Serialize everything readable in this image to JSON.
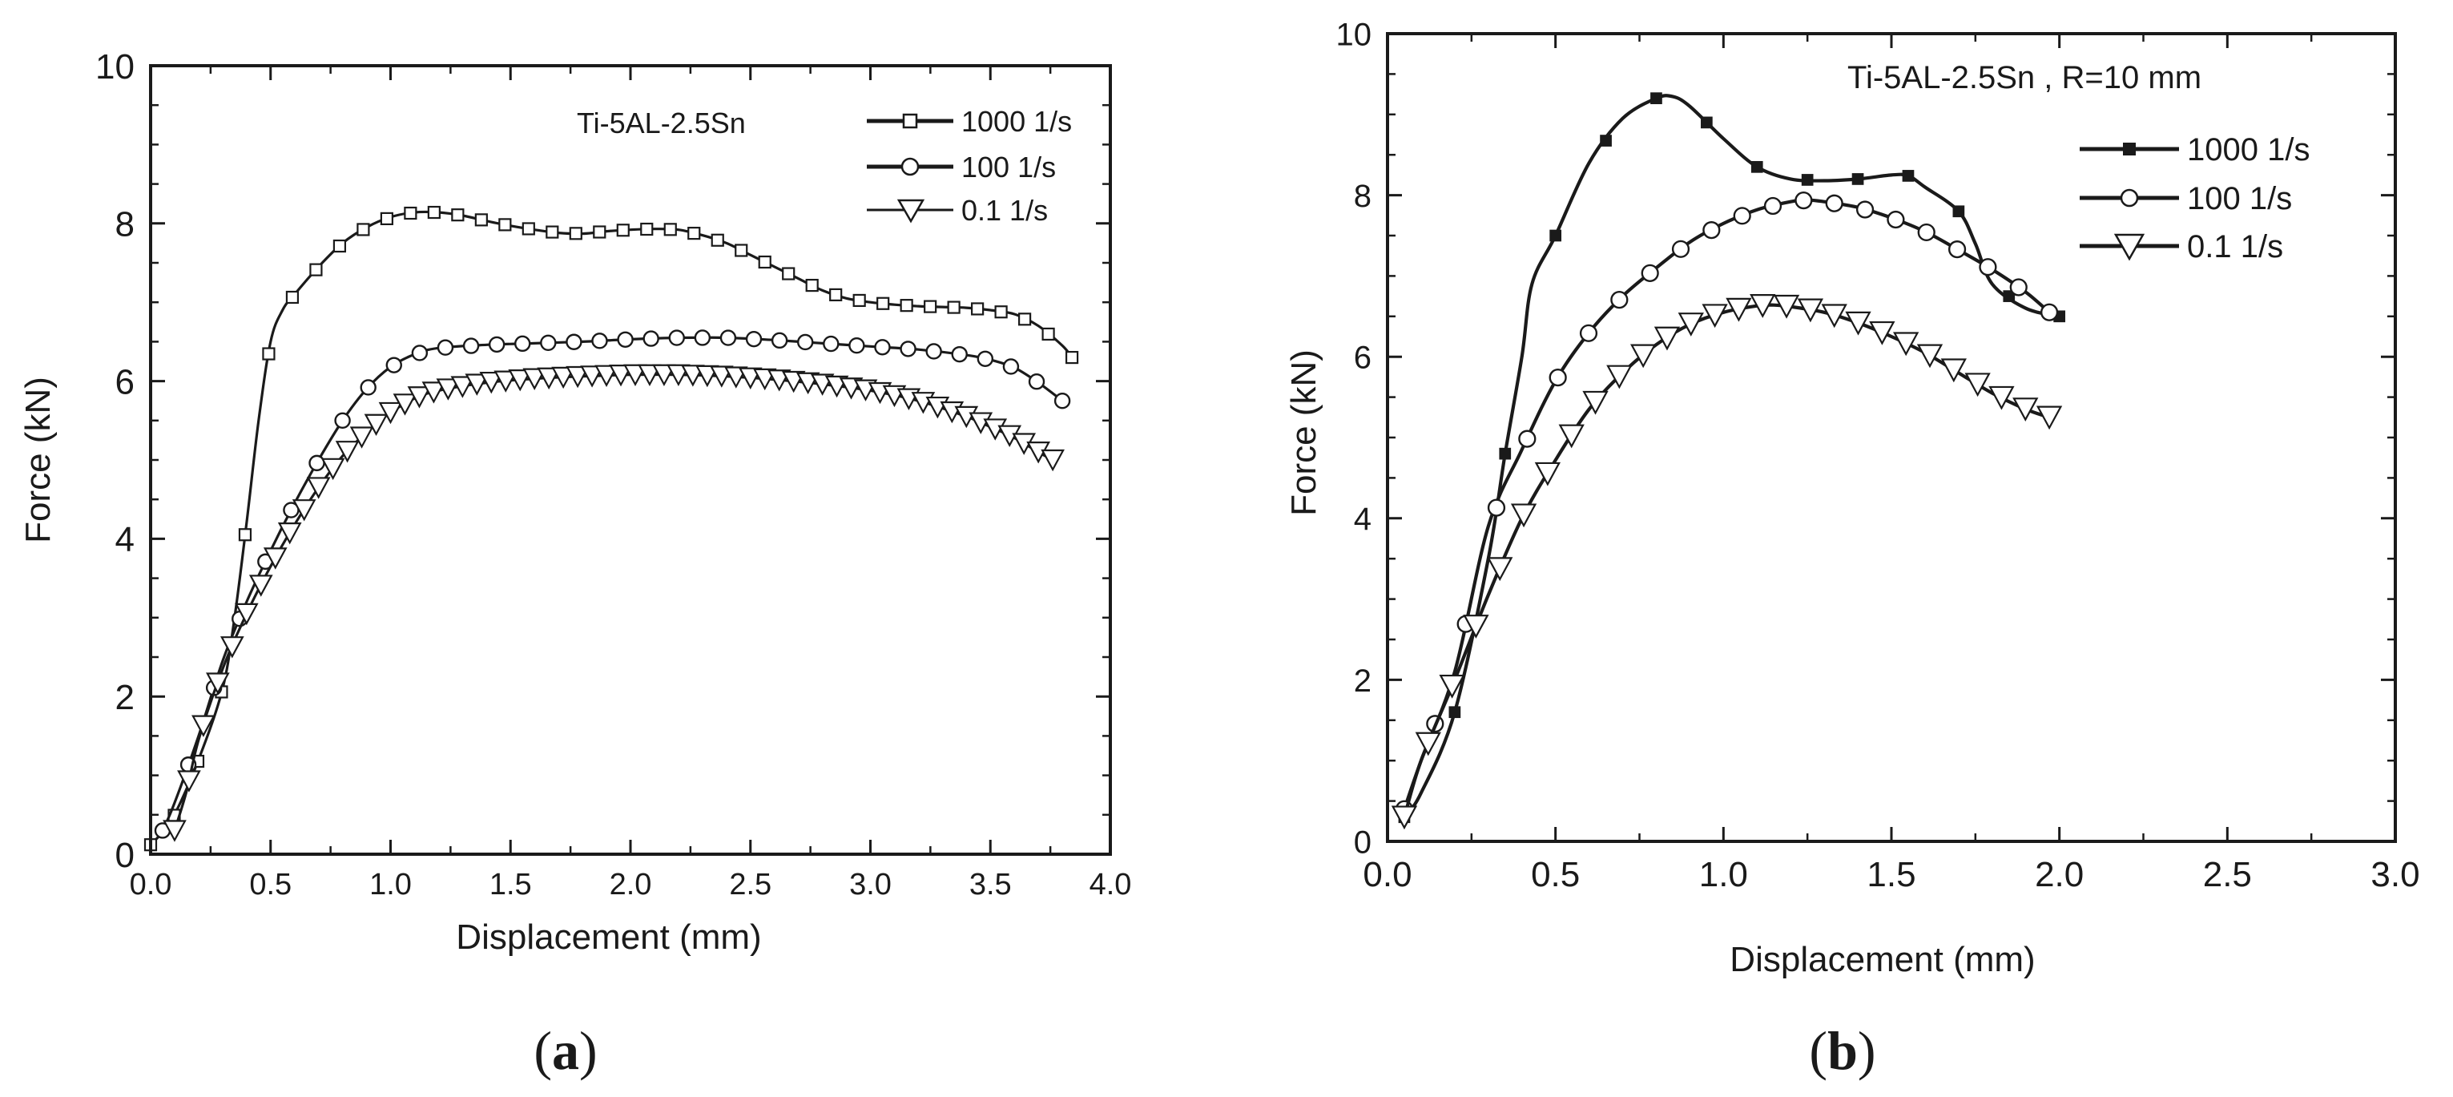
{
  "chart_data": [
    {
      "type": "line",
      "panel_label": "(a)",
      "panel_letter": "a",
      "annotation": "Ti-5AL-2.5Sn",
      "xlabel": "Displacement (mm)",
      "ylabel": "Force (kN)",
      "xlim": [
        0,
        4.0
      ],
      "ylim": [
        0,
        10
      ],
      "xticks": [
        "0.0",
        "0.5",
        "1.0",
        "1.5",
        "2.0",
        "2.5",
        "3.0",
        "3.5",
        "4.0"
      ],
      "yticks": [
        "0",
        "2",
        "4",
        "6",
        "8",
        "10"
      ],
      "legend_position": "top-right",
      "series": [
        {
          "name": "1000 1/s",
          "marker": "square-open",
          "marker_count": 40,
          "x": [
            0.0,
            0.05,
            0.1,
            0.2,
            0.3,
            0.35,
            0.4,
            0.45,
            0.5,
            0.55,
            0.6,
            0.7,
            0.8,
            0.9,
            1.0,
            1.1,
            1.2,
            1.3,
            1.4,
            1.5,
            1.6,
            1.7,
            1.8,
            1.9,
            2.0,
            2.1,
            2.2,
            2.3,
            2.4,
            2.5,
            2.6,
            2.7,
            2.8,
            2.9,
            3.0,
            3.1,
            3.2,
            3.3,
            3.4,
            3.5,
            3.6,
            3.7,
            3.8,
            3.84
          ],
          "y": [
            0.12,
            0.28,
            0.5,
            1.2,
            2.1,
            3.0,
            4.2,
            5.5,
            6.5,
            6.9,
            7.1,
            7.45,
            7.75,
            7.95,
            8.08,
            8.14,
            8.14,
            8.1,
            8.03,
            7.97,
            7.92,
            7.88,
            7.87,
            7.9,
            7.92,
            7.93,
            7.92,
            7.85,
            7.75,
            7.6,
            7.45,
            7.3,
            7.15,
            7.05,
            7.0,
            6.97,
            6.95,
            6.94,
            6.93,
            6.9,
            6.85,
            6.7,
            6.45,
            6.3
          ]
        },
        {
          "name": "100 1/s",
          "marker": "circle-open",
          "marker_count": 36,
          "x": [
            0.05,
            0.1,
            0.2,
            0.3,
            0.4,
            0.5,
            0.6,
            0.7,
            0.8,
            0.9,
            1.0,
            1.1,
            1.2,
            1.4,
            1.6,
            1.8,
            2.0,
            2.2,
            2.4,
            2.6,
            2.8,
            3.0,
            3.2,
            3.4,
            3.5,
            3.6,
            3.7,
            3.8
          ],
          "y": [
            0.3,
            0.65,
            1.5,
            2.45,
            3.2,
            3.85,
            4.45,
            5.0,
            5.5,
            5.9,
            6.18,
            6.34,
            6.42,
            6.46,
            6.48,
            6.5,
            6.53,
            6.55,
            6.55,
            6.52,
            6.48,
            6.44,
            6.4,
            6.33,
            6.27,
            6.17,
            5.98,
            5.75
          ]
        },
        {
          "name": "0.1 1/s",
          "marker": "triangle-down-open",
          "marker_count": 62,
          "x": [
            0.1,
            0.15,
            0.2,
            0.3,
            0.4,
            0.5,
            0.6,
            0.7,
            0.8,
            0.9,
            1.0,
            1.1,
            1.2,
            1.4,
            1.6,
            1.8,
            2.0,
            2.2,
            2.4,
            2.6,
            2.8,
            3.0,
            3.2,
            3.4,
            3.5,
            3.6,
            3.7,
            3.76
          ],
          "y": [
            0.3,
            0.8,
            1.45,
            2.35,
            3.05,
            3.65,
            4.18,
            4.65,
            5.05,
            5.35,
            5.6,
            5.78,
            5.88,
            5.98,
            6.03,
            6.06,
            6.08,
            6.08,
            6.06,
            6.02,
            5.96,
            5.88,
            5.75,
            5.55,
            5.42,
            5.28,
            5.1,
            5.0
          ]
        }
      ]
    },
    {
      "type": "line",
      "panel_label": "(b)",
      "panel_letter": "b",
      "annotation": "Ti-5AL-2.5Sn , R=10 mm",
      "xlabel": "Displacement (mm)",
      "ylabel": "Force (kN)",
      "xlim": [
        0,
        3.0
      ],
      "ylim": [
        0,
        10
      ],
      "xticks": [
        "0.0",
        "0.5",
        "1.0",
        "1.5",
        "2.0",
        "2.5",
        "3.0"
      ],
      "yticks": [
        "0",
        "2",
        "4",
        "6",
        "8",
        "10"
      ],
      "legend_position": "top-right",
      "series": [
        {
          "name": "1000 1/s",
          "marker": "square-filled",
          "marker_count": 14,
          "x": [
            0.05,
            0.1,
            0.2,
            0.3,
            0.35,
            0.4,
            0.43,
            0.5,
            0.6,
            0.7,
            0.8,
            0.85,
            0.9,
            1.0,
            1.1,
            1.2,
            1.3,
            1.4,
            1.5,
            1.55,
            1.6,
            1.7,
            1.75,
            1.8,
            1.9,
            2.0
          ],
          "y": [
            0.3,
            0.6,
            1.6,
            3.5,
            4.8,
            6.0,
            6.9,
            7.5,
            8.4,
            8.95,
            9.2,
            9.22,
            9.1,
            8.7,
            8.35,
            8.2,
            8.18,
            8.2,
            8.25,
            8.24,
            8.1,
            7.8,
            7.4,
            6.9,
            6.6,
            6.5
          ]
        },
        {
          "name": "100 1/s",
          "marker": "circle-open",
          "marker_count": 22,
          "x": [
            0.05,
            0.1,
            0.2,
            0.3,
            0.4,
            0.5,
            0.6,
            0.7,
            0.8,
            0.9,
            1.0,
            1.1,
            1.2,
            1.25,
            1.3,
            1.4,
            1.5,
            1.6,
            1.7,
            1.8,
            1.9,
            1.97
          ],
          "y": [
            0.4,
            1.0,
            2.1,
            3.9,
            4.85,
            5.7,
            6.3,
            6.75,
            7.1,
            7.42,
            7.65,
            7.82,
            7.92,
            7.94,
            7.92,
            7.85,
            7.72,
            7.55,
            7.32,
            7.08,
            6.8,
            6.55
          ]
        },
        {
          "name": "0.1 1/s",
          "marker": "triangle-down-open",
          "marker_count": 28,
          "x": [
            0.05,
            0.1,
            0.2,
            0.3,
            0.4,
            0.5,
            0.6,
            0.7,
            0.8,
            0.9,
            1.0,
            1.1,
            1.15,
            1.2,
            1.3,
            1.4,
            1.5,
            1.6,
            1.7,
            1.8,
            1.9,
            1.97
          ],
          "y": [
            0.3,
            1.0,
            2.0,
            3.05,
            4.0,
            4.72,
            5.35,
            5.8,
            6.15,
            6.4,
            6.55,
            6.63,
            6.64,
            6.62,
            6.55,
            6.42,
            6.25,
            6.05,
            5.8,
            5.55,
            5.35,
            5.25
          ]
        }
      ]
    }
  ]
}
